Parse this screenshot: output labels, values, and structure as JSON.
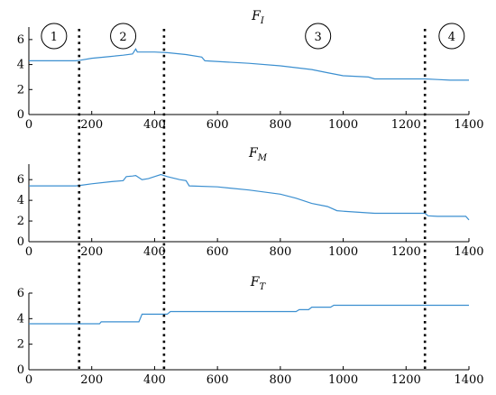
{
  "chart_data": [
    {
      "type": "line",
      "title": "F",
      "title_sub": "I",
      "xlim": [
        0,
        1400
      ],
      "ylim": [
        0,
        7
      ],
      "xticks": [
        0,
        200,
        400,
        600,
        800,
        1000,
        1200,
        1400
      ],
      "yticks": [
        0,
        2,
        4,
        6
      ],
      "line_color": "#3b8fd0",
      "x": [
        0,
        150,
        165,
        200,
        260,
        300,
        330,
        340,
        345,
        360,
        400,
        440,
        500,
        550,
        560,
        700,
        800,
        900,
        950,
        1000,
        1080,
        1100,
        1260,
        1300,
        1340,
        1400
      ],
      "y": [
        4.3,
        4.3,
        4.35,
        4.5,
        4.65,
        4.75,
        4.85,
        5.25,
        5.0,
        5.0,
        5.0,
        4.95,
        4.8,
        4.6,
        4.3,
        4.1,
        3.9,
        3.6,
        3.35,
        3.1,
        3.0,
        2.85,
        2.85,
        2.8,
        2.75,
        2.75
      ]
    },
    {
      "type": "line",
      "title": "F",
      "title_sub": "M",
      "xlim": [
        0,
        1400
      ],
      "ylim": [
        0,
        7.5
      ],
      "xticks": [
        0,
        200,
        400,
        600,
        800,
        1000,
        1200,
        1400
      ],
      "yticks": [
        0,
        2,
        4,
        6
      ],
      "line_color": "#3b8fd0",
      "x": [
        0,
        150,
        165,
        200,
        260,
        300,
        310,
        330,
        340,
        360,
        380,
        400,
        420,
        440,
        480,
        500,
        510,
        600,
        700,
        800,
        850,
        900,
        950,
        980,
        1000,
        1100,
        1260,
        1270,
        1300,
        1390,
        1400
      ],
      "y": [
        5.4,
        5.4,
        5.45,
        5.6,
        5.8,
        5.9,
        6.3,
        6.35,
        6.4,
        6.0,
        6.1,
        6.3,
        6.5,
        6.3,
        6.0,
        5.9,
        5.4,
        5.3,
        5.0,
        4.6,
        4.2,
        3.7,
        3.4,
        3.0,
        2.95,
        2.75,
        2.75,
        2.5,
        2.45,
        2.45,
        2.1
      ]
    },
    {
      "type": "line",
      "title": "F",
      "title_sub": "T",
      "xlim": [
        0,
        1400
      ],
      "ylim": [
        0,
        6
      ],
      "xticks": [
        0,
        200,
        400,
        600,
        800,
        1000,
        1200,
        1400
      ],
      "yticks": [
        0,
        2,
        4,
        6
      ],
      "line_color": "#3b8fd0",
      "x": [
        0,
        225,
        230,
        350,
        360,
        440,
        450,
        850,
        860,
        890,
        900,
        960,
        970,
        1400
      ],
      "y": [
        3.6,
        3.6,
        3.75,
        3.75,
        4.35,
        4.35,
        4.55,
        4.55,
        4.7,
        4.7,
        4.9,
        4.9,
        5.05,
        5.05
      ]
    }
  ],
  "dividers": [
    160,
    430,
    1260
  ],
  "regions": [
    {
      "label": "1",
      "x": 80
    },
    {
      "label": "2",
      "x": 300
    },
    {
      "label": "3",
      "x": 920
    },
    {
      "label": "4",
      "x": 1345
    }
  ]
}
